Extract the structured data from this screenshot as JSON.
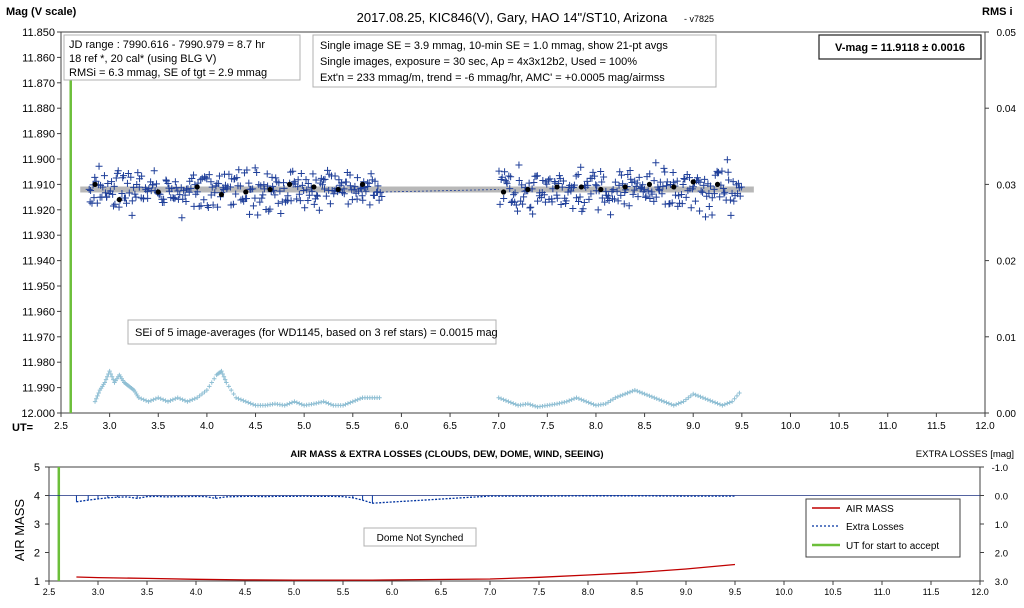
{
  "chart_data": [
    {
      "type": "scatter",
      "title": "2017.08.25,  KIC846(V),  Gary,  HAO  14\"/ST10,  Arizona",
      "title_suffix": "- v7825",
      "ylabel": "Mag (V scale)",
      "y2label": "RMS i",
      "xlabel": "UT=",
      "xlim": [
        2.5,
        12.0
      ],
      "xticks": [
        "2.5",
        "3.0",
        "3.5",
        "4.0",
        "4.5",
        "5.0",
        "5.5",
        "6.0",
        "6.5",
        "7.0",
        "7.5",
        "8.0",
        "8.5",
        "9.0",
        "9.5",
        "10.0",
        "10.5",
        "11.0",
        "11.5",
        "12.0"
      ],
      "ylim": [
        11.85,
        12.0
      ],
      "ylim_reversed": true,
      "yticks": [
        "11.850",
        "11.860",
        "11.870",
        "11.880",
        "11.890",
        "11.900",
        "11.910",
        "11.920",
        "11.930",
        "11.940",
        "11.950",
        "11.960",
        "11.970",
        "11.980",
        "11.990",
        "12.000"
      ],
      "y2lim": [
        0.0,
        0.05
      ],
      "y2ticks": [
        "0.00",
        "0.01",
        "0.02",
        "0.03",
        "0.04",
        "0.05"
      ],
      "grid": false,
      "info_box_left": [
        "JD range : 7990.616 - 7990.979 =  8.7 hr",
        "18 ref *, 20 cal* (using BLG V)",
        "RMSi = 6.3 mmag, SE of tgt = 2.9 mmag"
      ],
      "info_box_mid": [
        "Single image SE = 3.9 mmag, 10-min SE = 1.0 mmag, show 21-pt avgs",
        "Single images, exposure = 30 sec, Ap = 4x3x12b2, Used = 100%",
        "Ext'n = 233 mmag/m, trend = -6 mmag/hr, AMC' = +0.0005 mag/airmss"
      ],
      "vmag_label": "V-mag = 11.9118 ± 0.0016",
      "se_note": "SEi of 5 image-averages (for WD1145, based on 3 ref stars) = 0.0015 mag",
      "ut_start_accept": 2.6,
      "model_mag": 11.912,
      "series": [
        {
          "kind": "single-images",
          "segments": [
            {
              "x_start": 2.78,
              "x_end": 5.8,
              "y_mean": 11.9125,
              "y_spread": 0.0042
            },
            {
              "x_start": 7.0,
              "x_end": 9.5,
              "y_mean": 11.912,
              "y_spread": 0.0045
            }
          ]
        },
        {
          "kind": "21-pt-averages",
          "x": [
            2.85,
            3.1,
            3.5,
            3.9,
            4.15,
            4.4,
            4.65,
            4.85,
            5.1,
            5.35,
            5.6,
            7.05,
            7.3,
            7.6,
            7.85,
            8.05,
            8.3,
            8.55,
            8.8,
            9.0,
            9.25
          ],
          "y": [
            11.91,
            11.916,
            11.913,
            11.911,
            11.914,
            11.913,
            11.912,
            11.91,
            11.911,
            11.912,
            11.91,
            11.913,
            11.912,
            11.911,
            11.911,
            11.912,
            11.911,
            11.91,
            11.911,
            11.909,
            11.91
          ]
        },
        {
          "kind": "RMS-i",
          "x": [
            2.85,
            2.9,
            2.95,
            3.0,
            3.05,
            3.1,
            3.15,
            3.2,
            3.25,
            3.3,
            3.4,
            3.5,
            3.6,
            3.7,
            3.8,
            3.9,
            4.0,
            4.1,
            4.15,
            4.2,
            4.3,
            4.4,
            4.5,
            4.6,
            4.7,
            4.8,
            4.9,
            5.0,
            5.1,
            5.2,
            5.3,
            5.4,
            5.5,
            5.6,
            5.7,
            5.8,
            7.0,
            7.1,
            7.2,
            7.3,
            7.4,
            7.5,
            7.6,
            7.7,
            7.8,
            7.9,
            8.0,
            8.1,
            8.2,
            8.3,
            8.4,
            8.5,
            8.6,
            8.7,
            8.8,
            8.9,
            9.0,
            9.1,
            9.2,
            9.3,
            9.4,
            9.5
          ],
          "y": [
            0.0015,
            0.003,
            0.004,
            0.0055,
            0.004,
            0.005,
            0.004,
            0.0035,
            0.003,
            0.002,
            0.0015,
            0.002,
            0.0015,
            0.002,
            0.0015,
            0.002,
            0.003,
            0.005,
            0.0055,
            0.004,
            0.002,
            0.0015,
            0.001,
            0.001,
            0.0012,
            0.001,
            0.0015,
            0.001,
            0.0012,
            0.0015,
            0.001,
            0.001,
            0.0015,
            0.002,
            0.002,
            0.002,
            0.002,
            0.0015,
            0.001,
            0.0012,
            0.0008,
            0.001,
            0.0012,
            0.0015,
            0.002,
            0.0015,
            0.001,
            0.0012,
            0.002,
            0.0025,
            0.003,
            0.0025,
            0.002,
            0.0015,
            0.001,
            0.0015,
            0.0025,
            0.002,
            0.0015,
            0.001,
            0.0015,
            0.003
          ]
        }
      ]
    },
    {
      "type": "line",
      "title": "AIR MASS & EXTRA LOSSES (CLOUDS, DEW, DOME, WIND, SEEING)",
      "ylabel": "AIR MASS",
      "y2label": "EXTRA LOSSES [mag]",
      "xlim": [
        2.5,
        12.0
      ],
      "xticks": [
        "2.5",
        "3.0",
        "3.5",
        "4.0",
        "4.5",
        "5.0",
        "5.5",
        "6.0",
        "6.5",
        "7.0",
        "7.5",
        "8.0",
        "8.5",
        "9.0",
        "9.5",
        "10.0",
        "10.5",
        "11.0",
        "11.5",
        "12.0"
      ],
      "ylim": [
        1,
        5
      ],
      "yticks": [
        "1",
        "2",
        "3",
        "4",
        "5"
      ],
      "y2lim": [
        -1.0,
        3.0
      ],
      "y2_reversed": true,
      "y2ticks": [
        "-1.0",
        "0.0",
        "1.0",
        "2.0",
        "3.0"
      ],
      "note": "Dome Not Synched",
      "legend_position": "right",
      "legend": [
        "AIR MASS",
        "Extra Losses",
        "UT for start to accept"
      ],
      "ut_start_accept": 2.6,
      "series": [
        {
          "name": "AIR MASS",
          "color": "#c00000",
          "x": [
            2.78,
            3.0,
            3.5,
            4.0,
            4.5,
            5.0,
            5.5,
            5.8,
            7.0,
            7.5,
            8.0,
            8.5,
            9.0,
            9.5
          ],
          "y": [
            1.14,
            1.12,
            1.09,
            1.06,
            1.04,
            1.03,
            1.03,
            1.03,
            1.07,
            1.13,
            1.21,
            1.3,
            1.42,
            1.58
          ]
        },
        {
          "name": "Extra Losses",
          "color": "#0033a0",
          "x": [
            2.78,
            2.9,
            3.0,
            3.1,
            3.2,
            3.3,
            3.4,
            3.5,
            3.6,
            3.7,
            3.8,
            3.9,
            4.0,
            4.1,
            4.2,
            4.3,
            4.4,
            4.5,
            4.6,
            4.7,
            4.8,
            4.9,
            5.0,
            5.1,
            5.2,
            5.3,
            5.4,
            5.5,
            5.6,
            5.7,
            5.8,
            7.0,
            7.5,
            8.0,
            8.5,
            9.0,
            9.5
          ],
          "y": [
            0.22,
            0.16,
            0.12,
            0.08,
            0.06,
            0.05,
            0.1,
            0.04,
            0.03,
            0.05,
            0.04,
            0.04,
            0.03,
            0.04,
            0.1,
            0.05,
            0.04,
            0.03,
            0.03,
            0.04,
            0.03,
            0.03,
            0.03,
            0.02,
            0.03,
            0.03,
            0.03,
            0.04,
            0.08,
            0.16,
            0.27,
            0.02,
            0.02,
            0.01,
            0.01,
            0.02,
            0.02
          ]
        }
      ]
    }
  ]
}
